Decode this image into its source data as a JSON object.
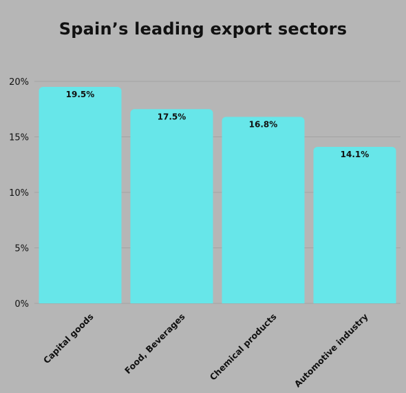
{
  "chart_data": {
    "type": "bar",
    "title": "Spain’s leading export sectors",
    "categories": [
      "Capital goods",
      "Food, Beverages",
      "Chemical products",
      "Automotive industry"
    ],
    "values": [
      19.5,
      17.5,
      16.8,
      14.1
    ],
    "data_labels": [
      "19.5%",
      "17.5%",
      "16.8%",
      "14.1%"
    ],
    "ylim": [
      0,
      20
    ],
    "yticks": [
      0,
      5,
      10,
      15,
      20
    ],
    "ytick_labels": [
      "0%",
      "5%",
      "10%",
      "15%",
      "20%"
    ],
    "grid": true,
    "legend": "none"
  },
  "colors": {
    "background": "#b6b6b6",
    "bar": "#67e6e9",
    "grid": "#a3a3a3",
    "text": "#111111"
  }
}
